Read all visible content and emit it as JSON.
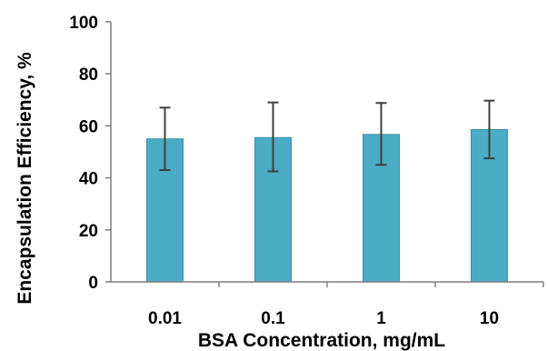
{
  "chart_data": {
    "type": "bar",
    "title": "",
    "xlabel": "BSA Concentration, mg/mL",
    "ylabel": "Encapsulation Efficiency, %",
    "categories": [
      "0.01",
      "0.1",
      "1",
      "10"
    ],
    "values": [
      55,
      55.5,
      56.7,
      58.6
    ],
    "error": {
      "low": [
        43,
        42.5,
        45,
        47.5
      ],
      "high": [
        67,
        69,
        68.8,
        69.7
      ]
    },
    "ylim": [
      0,
      100
    ],
    "yticks": [
      0,
      20,
      40,
      60,
      80,
      100
    ],
    "grid": false,
    "legend": "none",
    "colors": {
      "bar": "#4bacc6",
      "bar_edge": "#3d8fa6",
      "error_bar": "#404040",
      "axis": "#7f7f7f"
    }
  }
}
